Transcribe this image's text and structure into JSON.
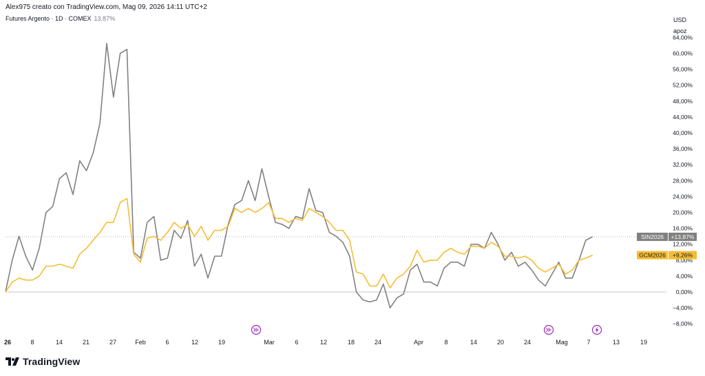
{
  "header": {
    "attribution": "Alex975 creato con TradingView.com, Mag 09, 2026 14:11 UTC+2",
    "symbol": "Futures Argento · 1D · COMEX",
    "symbol_change": "13,87%",
    "currency": "USD",
    "scale_mode": "apoz"
  },
  "brand": {
    "name": "TradingView"
  },
  "colors": {
    "silver": "#808080",
    "gold": "#f5bd32",
    "axis_text": "#131722",
    "event_icon": "#9c27b0"
  },
  "event_icons": [
    "fast-forward-icon",
    "fast-forward-icon",
    "lightning-icon"
  ],
  "chart_data": {
    "type": "line",
    "ylim": [
      -9,
      65
    ],
    "y_ticks": [
      -8,
      -4,
      0,
      4,
      8,
      12,
      16,
      20,
      24,
      28,
      32,
      36,
      40,
      44,
      48,
      52,
      56,
      60,
      64
    ],
    "y_tick_labels": [
      "−8,00%",
      "−4,00%",
      "0,00%",
      "4,00%",
      "8,00%",
      "12,00%",
      "16,00%",
      "20,00%",
      "24,00%",
      "28,00%",
      "32,00%",
      "36,00%",
      "40,00%",
      "44,00%",
      "48,00%",
      "52,00%",
      "56,00%",
      "60,00%",
      "64,00%"
    ],
    "x_labels": [
      "26",
      "8",
      "14",
      "21",
      "27",
      "Feb",
      "6",
      "12",
      "19",
      "Mar",
      "6",
      "12",
      "18",
      "24",
      "Apr",
      "8",
      "14",
      "20",
      "24",
      "Mag",
      "7",
      "13",
      "19"
    ],
    "series": [
      {
        "name": "SIN2026",
        "last_label": "+13,87%",
        "values": [
          0,
          8,
          14,
          9,
          5.5,
          11,
          20,
          21.5,
          28.5,
          30,
          24.5,
          33,
          30.5,
          35,
          42.5,
          62.5,
          49,
          60,
          61,
          10,
          8.5,
          17.5,
          19,
          8,
          8.5,
          15.5,
          13.5,
          18,
          6.5,
          9.5,
          3.5,
          9,
          9,
          17,
          22,
          23,
          28,
          23,
          31,
          24,
          17.5,
          17,
          16,
          19,
          18.5,
          26,
          20.5,
          20,
          15,
          14,
          12.5,
          9,
          0,
          -2,
          -2.5,
          -2,
          2,
          -4,
          -1.5,
          -0.5,
          5.5,
          7,
          2.5,
          2.5,
          1.5,
          6,
          7.5,
          7.5,
          6.5,
          12,
          12,
          11,
          15,
          12,
          8,
          10,
          6.5,
          7.5,
          5.5,
          3,
          1.5,
          4.5,
          7.5,
          3.5,
          3.5,
          8,
          13,
          13.87
        ]
      },
      {
        "name": "GCM2026",
        "last_label": "+9,26%",
        "values": [
          0,
          2.5,
          3.5,
          3,
          3,
          4,
          6.5,
          6.5,
          7,
          6.5,
          6,
          9.5,
          11,
          13,
          15,
          17.5,
          17.5,
          22.5,
          23.5,
          9.5,
          7.5,
          13.5,
          14,
          13,
          15,
          17.5,
          16,
          17,
          14,
          16.5,
          13,
          15.5,
          15.5,
          16.5,
          21,
          20,
          21,
          20,
          21,
          22.5,
          18.5,
          18.5,
          17.5,
          18.5,
          18,
          21,
          20,
          19,
          17.5,
          15.5,
          15.5,
          13,
          5,
          4.5,
          1.5,
          1.5,
          4.5,
          1,
          3.5,
          4.5,
          6.5,
          10.5,
          7.5,
          8,
          8,
          10,
          11,
          10,
          9.5,
          11.5,
          11.5,
          11,
          12.5,
          11.5,
          9,
          9,
          8.5,
          9,
          8,
          6,
          5,
          6,
          7,
          4.5,
          5.5,
          8,
          8.5,
          9.26
        ]
      }
    ]
  }
}
